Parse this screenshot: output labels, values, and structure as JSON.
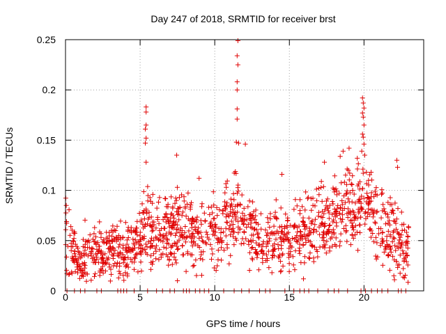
{
  "chart_data": {
    "type": "scatter",
    "title": "Day 247 of 2018, SRMTID for receiver brst",
    "xlabel": "GPS time / hours",
    "ylabel": "SRMTID / TECUs",
    "xlim": [
      0,
      24
    ],
    "ylim": [
      0,
      0.25
    ],
    "x_ticks": [
      0,
      5,
      10,
      15,
      20
    ],
    "x_tick_labels": [
      "0",
      "5",
      "10",
      "15",
      "20"
    ],
    "y_ticks": [
      0,
      0.05,
      0.1,
      0.15,
      0.2,
      0.25
    ],
    "y_tick_labels": [
      "0",
      "0.05",
      "0.1",
      "0.15",
      "0.2",
      "0.25"
    ],
    "grid": true,
    "marker": "+",
    "color": "#e00000",
    "series": [
      {
        "name": "SRMTID",
        "spikes": [
          {
            "x": 5.4,
            "y": 0.183
          },
          {
            "x": 5.4,
            "y": 0.178
          },
          {
            "x": 5.4,
            "y": 0.165
          },
          {
            "x": 5.35,
            "y": 0.161
          },
          {
            "x": 5.4,
            "y": 0.152
          },
          {
            "x": 5.35,
            "y": 0.147
          },
          {
            "x": 5.4,
            "y": 0.128
          },
          {
            "x": 11.55,
            "y": 0.249
          },
          {
            "x": 11.5,
            "y": 0.234
          },
          {
            "x": 11.55,
            "y": 0.225
          },
          {
            "x": 11.5,
            "y": 0.208
          },
          {
            "x": 11.5,
            "y": 0.2
          },
          {
            "x": 11.5,
            "y": 0.181
          },
          {
            "x": 11.5,
            "y": 0.171
          },
          {
            "x": 11.45,
            "y": 0.148
          },
          {
            "x": 11.6,
            "y": 0.147
          },
          {
            "x": 12.05,
            "y": 0.146
          },
          {
            "x": 7.45,
            "y": 0.135
          },
          {
            "x": 18.6,
            "y": 0.139
          },
          {
            "x": 19.9,
            "y": 0.192
          },
          {
            "x": 19.95,
            "y": 0.187
          },
          {
            "x": 20.0,
            "y": 0.182
          },
          {
            "x": 19.9,
            "y": 0.177
          },
          {
            "x": 19.95,
            "y": 0.173
          },
          {
            "x": 20.0,
            "y": 0.165
          },
          {
            "x": 19.9,
            "y": 0.156
          },
          {
            "x": 19.95,
            "y": 0.153
          },
          {
            "x": 20.0,
            "y": 0.146
          },
          {
            "x": 19.85,
            "y": 0.139
          },
          {
            "x": 20.05,
            "y": 0.135
          },
          {
            "x": 19.55,
            "y": 0.132
          },
          {
            "x": 22.2,
            "y": 0.13
          },
          {
            "x": 22.25,
            "y": 0.123
          },
          {
            "x": 19.0,
            "y": 0.142
          },
          {
            "x": 17.35,
            "y": 0.128
          },
          {
            "x": 14.5,
            "y": 0.116
          },
          {
            "x": 8.95,
            "y": 0.112
          },
          {
            "x": 7.5,
            "y": 0.01
          },
          {
            "x": 22.0,
            "y": 0.015
          },
          {
            "x": 0.05,
            "y": 0.085
          }
        ],
        "baseline_profile": [
          {
            "x": 0.0,
            "y": 0.06
          },
          {
            "x": 0.5,
            "y": 0.035
          },
          {
            "x": 1.0,
            "y": 0.03
          },
          {
            "x": 2.0,
            "y": 0.033
          },
          {
            "x": 3.0,
            "y": 0.037
          },
          {
            "x": 4.0,
            "y": 0.04
          },
          {
            "x": 5.0,
            "y": 0.05
          },
          {
            "x": 5.5,
            "y": 0.065
          },
          {
            "x": 6.0,
            "y": 0.055
          },
          {
            "x": 7.0,
            "y": 0.06
          },
          {
            "x": 8.0,
            "y": 0.06
          },
          {
            "x": 9.0,
            "y": 0.055
          },
          {
            "x": 10.0,
            "y": 0.06
          },
          {
            "x": 11.0,
            "y": 0.075
          },
          {
            "x": 11.5,
            "y": 0.08
          },
          {
            "x": 12.0,
            "y": 0.065
          },
          {
            "x": 13.0,
            "y": 0.05
          },
          {
            "x": 14.0,
            "y": 0.055
          },
          {
            "x": 15.0,
            "y": 0.05
          },
          {
            "x": 16.0,
            "y": 0.06
          },
          {
            "x": 17.0,
            "y": 0.065
          },
          {
            "x": 18.0,
            "y": 0.07
          },
          {
            "x": 18.5,
            "y": 0.085
          },
          {
            "x": 19.5,
            "y": 0.08
          },
          {
            "x": 20.0,
            "y": 0.09
          },
          {
            "x": 21.0,
            "y": 0.065
          },
          {
            "x": 22.0,
            "y": 0.06
          },
          {
            "x": 22.5,
            "y": 0.045
          },
          {
            "x": 23.0,
            "y": 0.04
          }
        ],
        "zero_row_x": [
          0.1,
          0.6,
          1.0,
          1.3,
          2.1,
          2.4,
          3.5,
          3.7,
          3.9,
          4.1,
          4.6,
          5.5,
          6.1,
          6.5,
          7.0,
          7.3,
          7.9,
          8.1,
          8.3,
          8.7,
          9.0,
          9.3,
          9.6,
          10.6,
          11.3,
          11.8,
          12.3,
          13.0,
          13.4,
          13.7,
          14.7,
          15.3,
          15.7,
          16.0,
          16.3,
          16.9,
          17.6,
          18.0,
          18.3,
          18.9,
          19.8,
          20.1,
          20.5,
          20.9,
          21.2,
          21.6,
          22.3,
          22.5,
          22.8
        ],
        "data_span": [
          0,
          23
        ]
      }
    ]
  }
}
